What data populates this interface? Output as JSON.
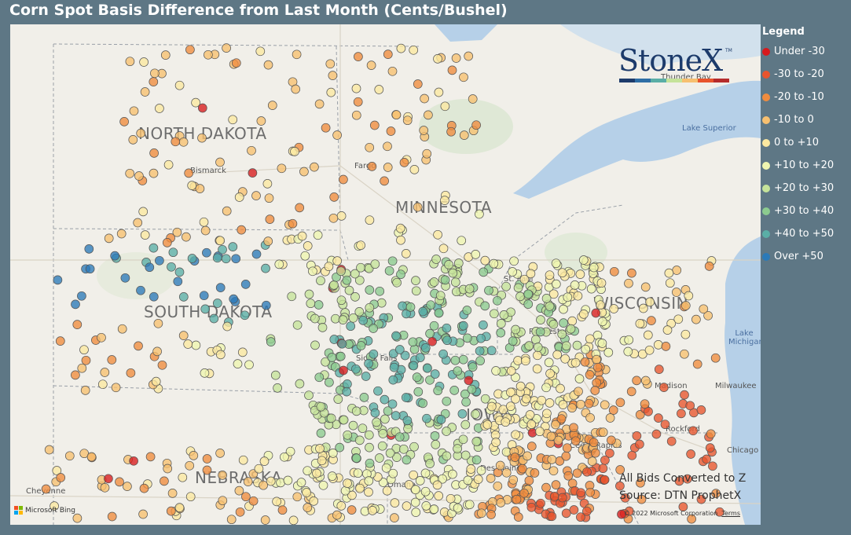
{
  "title": "Corn Spot Basis Difference from Last Month (Cents/Bushel)",
  "legend": {
    "title": "Legend",
    "items": [
      {
        "label": "Under -30",
        "color": "#d7191c"
      },
      {
        "label": "-30 to -20",
        "color": "#e8542d"
      },
      {
        "label": "-20 to -10",
        "color": "#f08c3e"
      },
      {
        "label": "-10 to 0",
        "color": "#f7c070"
      },
      {
        "label": "0 to +10",
        "color": "#fbe8a0"
      },
      {
        "label": "+10 to +20",
        "color": "#eef5b0"
      },
      {
        "label": "+20 to +30",
        "color": "#c5e39a"
      },
      {
        "label": "+30 to +40",
        "color": "#8ccb8f"
      },
      {
        "label": "+40 to +50",
        "color": "#5aaea6"
      },
      {
        "label": "Over +50",
        "color": "#2b7ab8"
      }
    ]
  },
  "map": {
    "states": [
      "NORTH DAKOTA",
      "MINNESOTA",
      "SOUTH DAKOTA",
      "WISCONSIN",
      "NEBRASKA",
      "IOWA"
    ],
    "cities": [
      "Bismarck",
      "Fargo",
      "St. Paul",
      "Rochester",
      "Sioux Falls",
      "Madison",
      "Milwaukee",
      "Rockford",
      "Cedar Rapids",
      "Chicago",
      "Omaha",
      "Des Moines",
      "Cheyenne",
      "Thunder Bay"
    ],
    "water": [
      "Lake Superior",
      "Lake Michigan"
    ]
  },
  "logo": {
    "text": "StoneX",
    "tm": "TM",
    "bar_colors": [
      "#1d3b6b",
      "#2e6ea6",
      "#5aaea6",
      "#c5e39a",
      "#f7c070",
      "#e8542d",
      "#b52b2b"
    ]
  },
  "source_lines": [
    "All Bids Converted to Z",
    "Source: DTN ProphetX"
  ],
  "attribution": {
    "bing": "Microsoft Bing",
    "copyright": "© 2022 Microsoft Corporation",
    "terms": "Terms"
  },
  "bing_colors": [
    "#f25022",
    "#7fba00",
    "#00a4ef",
    "#ffb900"
  ]
}
